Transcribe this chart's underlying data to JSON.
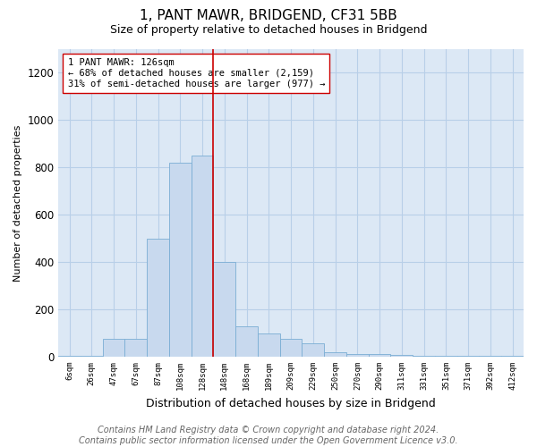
{
  "title": "1, PANT MAWR, BRIDGEND, CF31 5BB",
  "subtitle": "Size of property relative to detached houses in Bridgend",
  "xlabel": "Distribution of detached houses by size in Bridgend",
  "ylabel": "Number of detached properties",
  "bin_labels": [
    "6sqm",
    "26sqm",
    "47sqm",
    "67sqm",
    "87sqm",
    "108sqm",
    "128sqm",
    "148sqm",
    "168sqm",
    "189sqm",
    "209sqm",
    "229sqm",
    "250sqm",
    "270sqm",
    "290sqm",
    "311sqm",
    "331sqm",
    "351sqm",
    "371sqm",
    "392sqm",
    "412sqm"
  ],
  "bar_values": [
    3,
    3,
    75,
    75,
    500,
    820,
    850,
    400,
    130,
    100,
    75,
    55,
    20,
    10,
    10,
    8,
    5,
    5,
    3,
    3,
    3
  ],
  "bar_color": "#c8d9ee",
  "bar_edge_color": "#7aadd4",
  "vline_x_index": 6.5,
  "vline_color": "#cc0000",
  "annotation_text": "1 PANT MAWR: 126sqm\n← 68% of detached houses are smaller (2,159)\n31% of semi-detached houses are larger (977) →",
  "annotation_box_color": "white",
  "annotation_box_edge_color": "#cc0000",
  "ylim": [
    0,
    1300
  ],
  "yticks": [
    0,
    200,
    400,
    600,
    800,
    1000,
    1200
  ],
  "footer_text": "Contains HM Land Registry data © Crown copyright and database right 2024.\nContains public sector information licensed under the Open Government Licence v3.0.",
  "plot_bg_color": "#dce8f5",
  "grid_color": "#b8cfe8",
  "title_fontsize": 11,
  "subtitle_fontsize": 9,
  "footer_fontsize": 7
}
